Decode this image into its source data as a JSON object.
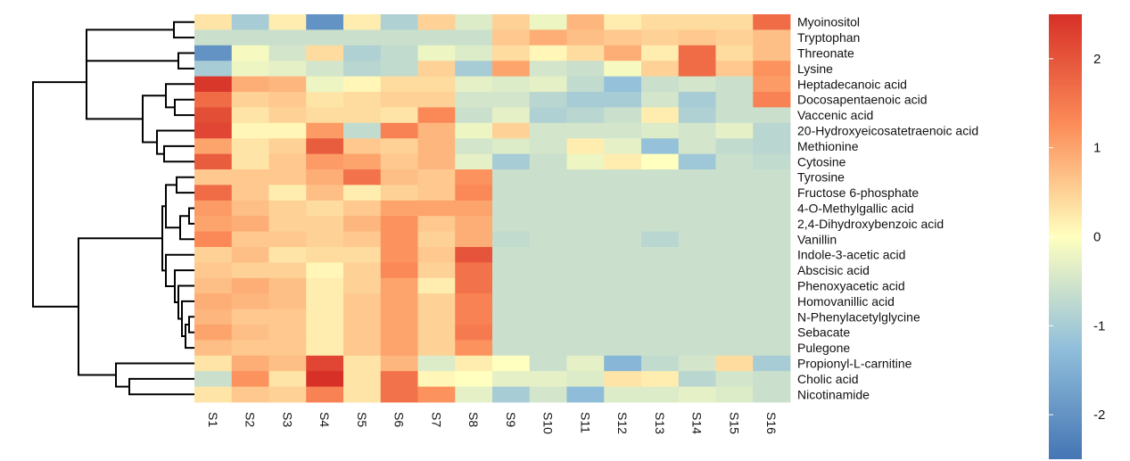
{
  "chart_data": {
    "type": "heatmap",
    "title": "",
    "xlabel": "",
    "ylabel": "",
    "columns": [
      "S1",
      "S2",
      "S3",
      "S4",
      "S5",
      "S6",
      "S7",
      "S8",
      "S9",
      "S10",
      "S11",
      "S12",
      "S13",
      "S14",
      "S15",
      "S16"
    ],
    "rows": [
      "Myoinositol",
      "Tryptophan",
      "Threonate",
      "Lysine",
      "Heptadecanoic acid",
      "Docosapentaenoic acid",
      "Vaccenic acid",
      "20-Hydroxyeicosatetraenoic acid",
      "Methionine",
      "Cytosine",
      "Tyrosine",
      "Fructose 6-phosphate",
      "4-O-Methylgallic acid",
      "2,4-Dihydroxybenzoic acid",
      "Vanillin",
      "Indole-3-acetic acid",
      "Abscisic acid",
      "Phenoxyacetic acid",
      "Homovanillic acid",
      "N-Phenylacetylglycine",
      "Sebacate",
      "Pulegone",
      "Propionyl-L-carnitine",
      "Cholic acid",
      "Nicotinamide"
    ],
    "values": [
      [
        0.3,
        -1.0,
        0.2,
        -2.0,
        0.2,
        -0.9,
        0.5,
        -0.4,
        0.5,
        -0.2,
        0.8,
        0.2,
        0.4,
        0.4,
        0.4,
        1.7
      ],
      [
        -0.6,
        -0.6,
        -0.6,
        -0.6,
        -0.6,
        -0.6,
        -0.6,
        -0.6,
        0.6,
        0.9,
        0.7,
        0.6,
        0.5,
        0.6,
        0.5,
        0.7
      ],
      [
        -2.0,
        -0.1,
        -0.5,
        0.4,
        -0.9,
        -0.7,
        -0.2,
        -0.4,
        0.4,
        0.1,
        0.4,
        0.9,
        0.2,
        1.7,
        0.4,
        0.7
      ],
      [
        -1.0,
        -0.2,
        -0.3,
        -0.5,
        -0.8,
        -0.7,
        0.5,
        -1.0,
        1.0,
        -0.5,
        -0.6,
        -0.1,
        0.5,
        1.7,
        0.6,
        1.2
      ],
      [
        2.4,
        0.9,
        0.8,
        -0.2,
        0.1,
        0.4,
        0.4,
        -0.3,
        -0.4,
        -0.3,
        -0.7,
        -1.2,
        -0.6,
        -0.5,
        -0.6,
        1.1
      ],
      [
        1.7,
        0.5,
        0.6,
        0.3,
        0.4,
        0.5,
        0.5,
        -0.5,
        -0.5,
        -0.8,
        -1.0,
        -1.0,
        -0.5,
        -1.0,
        -0.6,
        1.4
      ],
      [
        2.1,
        0.3,
        0.5,
        0.4,
        0.4,
        0.3,
        1.3,
        -0.6,
        -0.3,
        -0.9,
        -0.8,
        -0.6,
        0.2,
        -0.9,
        -0.6,
        -0.6
      ],
      [
        2.2,
        0.1,
        0.1,
        1.1,
        -0.7,
        1.4,
        0.8,
        -0.2,
        0.5,
        -0.5,
        -0.5,
        -0.5,
        -0.4,
        -0.5,
        -0.3,
        -0.8
      ],
      [
        1.0,
        0.3,
        0.5,
        1.9,
        0.6,
        0.5,
        0.8,
        -0.5,
        -0.4,
        -0.5,
        0.2,
        -0.3,
        -1.2,
        -0.5,
        -0.7,
        -0.8
      ],
      [
        1.9,
        0.3,
        0.6,
        1.1,
        1.0,
        0.6,
        0.8,
        -0.3,
        -1.0,
        -0.6,
        -0.2,
        0.2,
        0.0,
        -1.1,
        -0.6,
        -0.7
      ],
      [
        0.6,
        0.6,
        0.6,
        0.9,
        1.6,
        0.7,
        0.6,
        1.2,
        -0.6,
        -0.6,
        -0.6,
        -0.6,
        -0.6,
        -0.6,
        -0.6,
        -0.6
      ],
      [
        1.7,
        0.6,
        0.2,
        0.7,
        0.2,
        0.5,
        0.6,
        1.3,
        -0.6,
        -0.6,
        -0.6,
        -0.6,
        -0.6,
        -0.6,
        -0.6,
        -0.6
      ],
      [
        1.1,
        0.7,
        0.5,
        0.4,
        0.6,
        1.0,
        1.0,
        1.0,
        -0.6,
        -0.6,
        -0.6,
        -0.6,
        -0.6,
        -0.6,
        -0.6,
        -0.6
      ],
      [
        1.0,
        0.9,
        0.5,
        0.5,
        0.8,
        1.2,
        0.6,
        0.9,
        -0.6,
        -0.6,
        -0.6,
        -0.6,
        -0.6,
        -0.6,
        -0.6,
        -0.6
      ],
      [
        1.3,
        0.6,
        0.6,
        0.5,
        0.6,
        1.2,
        0.5,
        0.9,
        -0.7,
        -0.6,
        -0.6,
        -0.6,
        -0.8,
        -0.6,
        -0.6,
        -0.6
      ],
      [
        0.5,
        0.7,
        0.3,
        0.4,
        0.4,
        1.2,
        0.6,
        2.0,
        -0.6,
        -0.6,
        -0.6,
        -0.6,
        -0.6,
        -0.6,
        -0.6,
        -0.6
      ],
      [
        0.6,
        0.5,
        0.5,
        0.1,
        0.5,
        1.3,
        0.5,
        1.6,
        -0.6,
        -0.6,
        -0.6,
        -0.6,
        -0.6,
        -0.6,
        -0.6,
        -0.6
      ],
      [
        0.7,
        0.9,
        0.7,
        0.2,
        0.5,
        1.0,
        0.2,
        1.6,
        -0.6,
        -0.6,
        -0.6,
        -0.6,
        -0.6,
        -0.6,
        -0.6,
        -0.6
      ],
      [
        0.9,
        0.8,
        0.7,
        0.2,
        0.6,
        1.0,
        0.5,
        1.4,
        -0.6,
        -0.6,
        -0.6,
        -0.6,
        -0.6,
        -0.6,
        -0.6,
        -0.6
      ],
      [
        0.8,
        0.6,
        0.6,
        0.2,
        0.6,
        1.0,
        0.5,
        1.4,
        -0.6,
        -0.6,
        -0.6,
        -0.6,
        -0.6,
        -0.6,
        -0.6,
        -0.6
      ],
      [
        1.0,
        0.7,
        0.6,
        0.2,
        0.6,
        1.0,
        0.5,
        1.5,
        -0.6,
        -0.6,
        -0.6,
        -0.6,
        -0.6,
        -0.6,
        -0.6,
        -0.6
      ],
      [
        0.7,
        0.6,
        0.6,
        0.2,
        0.6,
        1.0,
        0.5,
        1.2,
        -0.6,
        -0.6,
        -0.6,
        -0.6,
        -0.6,
        -0.6,
        -0.6,
        -0.6
      ],
      [
        0.3,
        0.9,
        0.7,
        2.2,
        0.3,
        0.8,
        -0.4,
        0.2,
        0.0,
        -0.6,
        -0.3,
        -1.4,
        -0.7,
        -0.5,
        0.4,
        -1.0
      ],
      [
        -0.6,
        1.2,
        0.3,
        2.5,
        0.3,
        1.6,
        0.1,
        0.0,
        -0.3,
        -0.3,
        -0.4,
        0.3,
        0.2,
        -0.8,
        -0.5,
        -0.6
      ],
      [
        0.3,
        0.6,
        0.5,
        1.4,
        0.3,
        1.6,
        1.2,
        -0.3,
        -1.0,
        -0.5,
        -1.3,
        -0.4,
        -0.4,
        -0.3,
        -0.4,
        -0.6
      ]
    ],
    "colorbar": {
      "min": -2.5,
      "max": 2.5,
      "ticks": [
        2,
        1,
        0,
        -1,
        -2
      ]
    },
    "colors": {
      "low": "#4575b4",
      "mid": "#ffffbf",
      "high": "#d73027"
    },
    "dendrogram": "rows",
    "legend_position": "right"
  }
}
